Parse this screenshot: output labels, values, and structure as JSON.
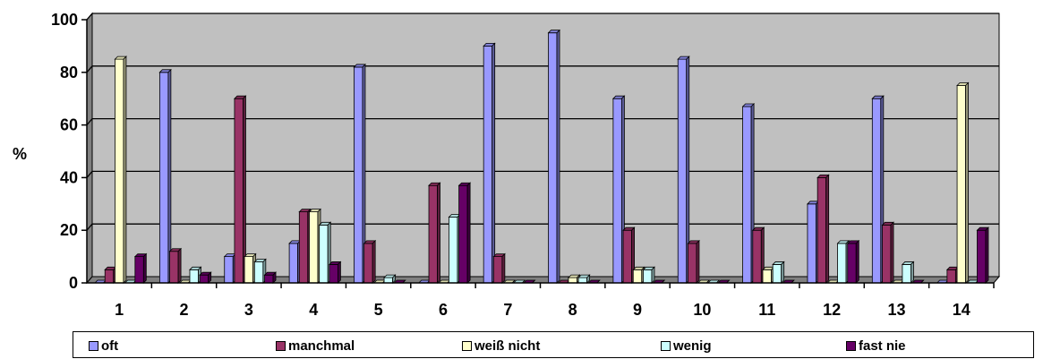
{
  "chart_data": {
    "type": "bar",
    "title": "",
    "xlabel": "",
    "ylabel": "%",
    "ylim": [
      0,
      100
    ],
    "yticks": [
      0,
      20,
      40,
      60,
      80,
      100
    ],
    "grid": true,
    "legend_position": "bottom",
    "categories": [
      "1",
      "2",
      "3",
      "4",
      "5",
      "6",
      "7",
      "8",
      "9",
      "10",
      "11",
      "12",
      "13",
      "14"
    ],
    "series": [
      {
        "name": "oft",
        "color": "#9999ff",
        "values": [
          0,
          80,
          10,
          15,
          82,
          0,
          90,
          95,
          70,
          85,
          67,
          30,
          70,
          0
        ]
      },
      {
        "name": "manchmal",
        "color": "#993366",
        "values": [
          5,
          12,
          70,
          27,
          15,
          37,
          10,
          0,
          20,
          15,
          20,
          40,
          22,
          5
        ]
      },
      {
        "name": "weiß nicht",
        "color": "#ffffcc",
        "values": [
          85,
          0,
          10,
          27,
          0,
          0,
          0,
          2,
          5,
          0,
          5,
          0,
          0,
          75
        ]
      },
      {
        "name": "wenig",
        "color": "#ccffff",
        "values": [
          0,
          5,
          8,
          22,
          2,
          25,
          0,
          2,
          5,
          0,
          7,
          15,
          7,
          0
        ]
      },
      {
        "name": "fast nie",
        "color": "#660066",
        "values": [
          10,
          3,
          3,
          7,
          0,
          37,
          0,
          0,
          0,
          0,
          0,
          15,
          0,
          20
        ]
      }
    ]
  },
  "colors": {
    "plot_background": "#c0c0c0",
    "plot_side": "#808080",
    "gridline": "#000000"
  }
}
